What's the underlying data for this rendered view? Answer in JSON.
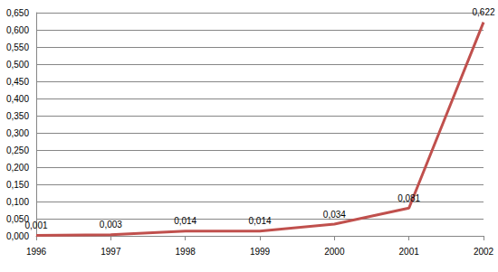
{
  "chart_data": {
    "type": "line",
    "categories": [
      "1996",
      "1997",
      "1998",
      "1999",
      "2000",
      "2001",
      "2002"
    ],
    "values": [
      0.001,
      0.003,
      0.014,
      0.014,
      0.034,
      0.081,
      0.622
    ],
    "value_labels": [
      "0,001",
      "0,003",
      "0,014",
      "0,014",
      "0,034",
      "0,081",
      "0,622"
    ],
    "color": "#c0504d",
    "ylim": [
      0,
      0.65
    ],
    "yticks": [
      {
        "value": 0,
        "label": "0,000"
      },
      {
        "value": 0.05,
        "label": "0,050"
      },
      {
        "value": 0.1,
        "label": "0,100"
      },
      {
        "value": 0.15,
        "label": "0,150"
      },
      {
        "value": 0.2,
        "label": "0,200"
      },
      {
        "value": 0.25,
        "label": "0,250"
      },
      {
        "value": 0.3,
        "label": "0,300"
      },
      {
        "value": 0.35,
        "label": "0,350"
      },
      {
        "value": 0.4,
        "label": "0,400"
      },
      {
        "value": 0.45,
        "label": "0,450"
      },
      {
        "value": 0.5,
        "label": "0,500"
      },
      {
        "value": 0.55,
        "label": "0,550"
      },
      {
        "value": 0.6,
        "label": "0,600"
      },
      {
        "value": 0.65,
        "label": "0,650"
      }
    ],
    "grid": true,
    "data_labels": true
  }
}
